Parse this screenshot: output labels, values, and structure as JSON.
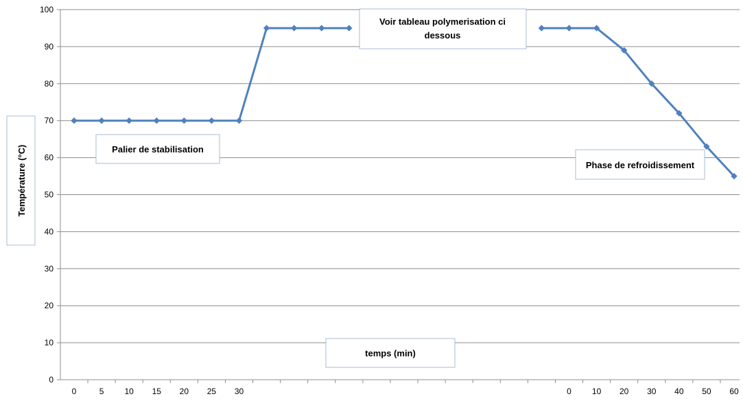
{
  "chart_data": {
    "type": "line",
    "title": "",
    "xlabel": "temps (min)",
    "ylabel": "Température (°C)",
    "ylim": [
      0,
      100
    ],
    "yticks": [
      0,
      10,
      20,
      30,
      40,
      50,
      60,
      70,
      80,
      90,
      100
    ],
    "grid": true,
    "categories": [
      "0",
      "5",
      "10",
      "15",
      "20",
      "25",
      "30",
      "",
      "",
      "",
      "",
      "",
      "",
      "",
      "",
      "",
      "",
      "",
      "0",
      "10",
      "20",
      "30",
      "40",
      "50",
      "60"
    ],
    "series": [
      {
        "color": "#4f81bd",
        "values": [
          70,
          70,
          70,
          70,
          70,
          70,
          70,
          95,
          95,
          95,
          95,
          null,
          null,
          null,
          null,
          null,
          null,
          95,
          95,
          95,
          89,
          80,
          72,
          63,
          55
        ]
      }
    ],
    "annotations": [
      {
        "id": "stabilisation",
        "text": "Palier de stabilisation"
      },
      {
        "id": "polymerisation",
        "text": "Voir tableau polymerisation ci dessous"
      },
      {
        "id": "refroidissement",
        "text": "Phase de refroidissement"
      }
    ]
  }
}
